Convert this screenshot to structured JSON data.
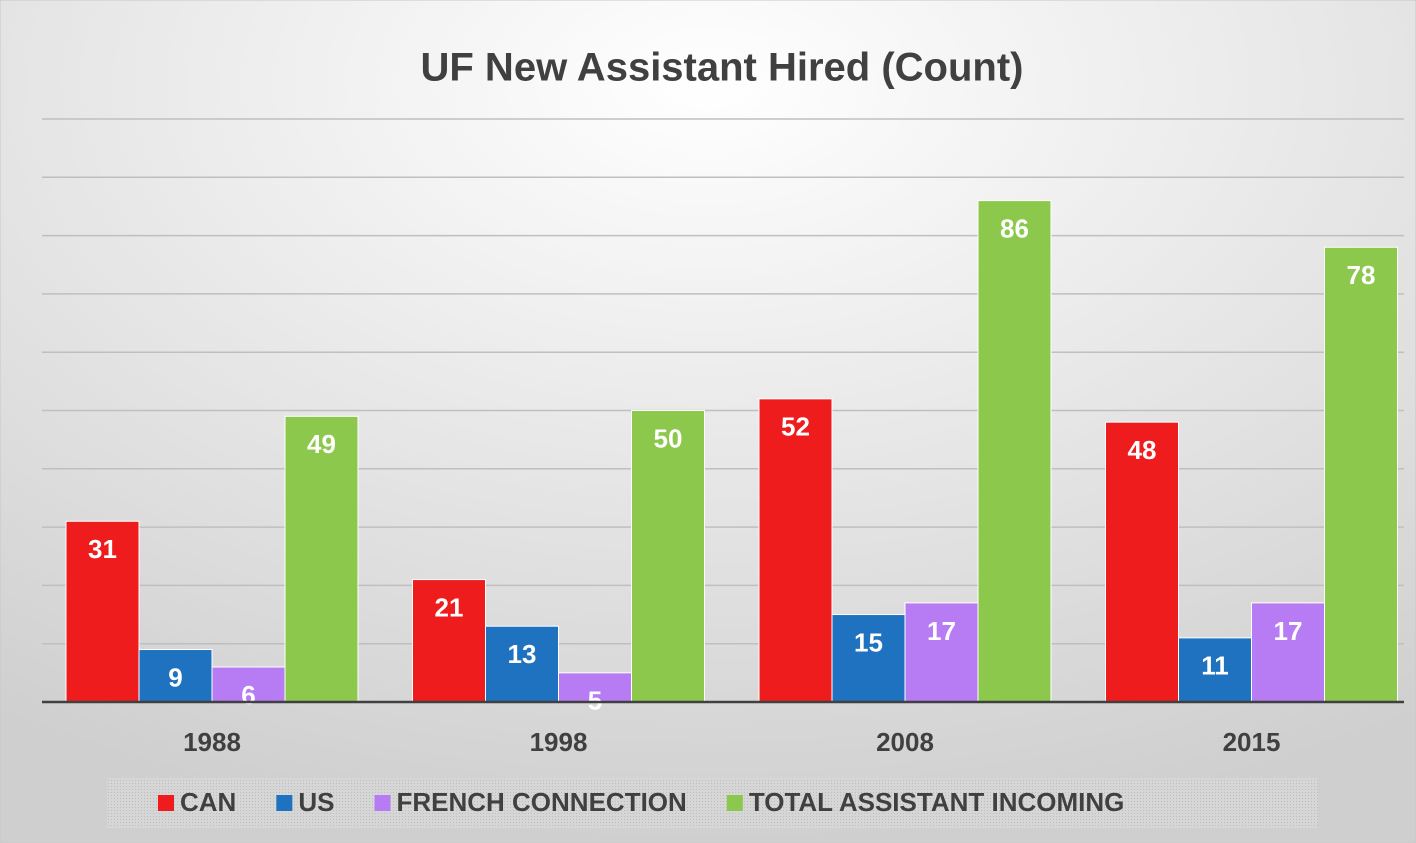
{
  "chart_data": {
    "type": "bar",
    "title": "UF New Assistant Hired (Count)",
    "categories": [
      "1988",
      "1998",
      "2008",
      "2015"
    ],
    "series": [
      {
        "name": "CAN",
        "color": "#ee1c1c",
        "values": [
          31,
          21,
          52,
          48
        ]
      },
      {
        "name": "US",
        "color": "#1e72c0",
        "values": [
          9,
          13,
          15,
          11
        ]
      },
      {
        "name": "FRENCH CONNECTION",
        "color": "#b77cf4",
        "values": [
          6,
          5,
          17,
          17
        ]
      },
      {
        "name": "TOTAL ASSISTANT INCOMING",
        "color": "#8cc84b",
        "values": [
          49,
          50,
          86,
          78
        ]
      }
    ],
    "ylim": [
      0,
      100
    ],
    "yticks": [
      0,
      10,
      20,
      30,
      40,
      50,
      60,
      70,
      80,
      90,
      100
    ],
    "grid": true,
    "legend": "bottom"
  }
}
